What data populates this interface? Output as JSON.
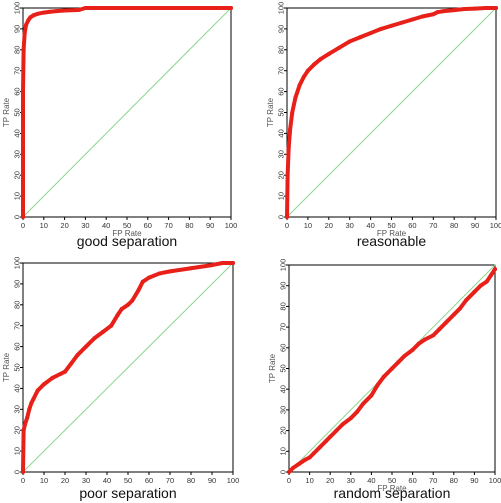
{
  "chart_data": [
    {
      "type": "line",
      "caption": "good separation",
      "xlabel": "FP Rate",
      "ylabel": "TP Rate",
      "xlim": [
        0,
        100
      ],
      "ylim": [
        0,
        100
      ],
      "x_ticks": [
        0,
        10,
        20,
        30,
        40,
        50,
        60,
        70,
        80,
        90,
        100
      ],
      "y_ticks": [
        0,
        10,
        20,
        30,
        40,
        50,
        60,
        70,
        80,
        90,
        100
      ],
      "grid": false,
      "series": [
        {
          "role": "roc",
          "color": "#e8201a",
          "x": [
            0,
            0,
            0.3,
            0.8,
            1.5,
            2.5,
            3.5,
            5,
            7,
            10,
            13,
            16,
            20,
            25,
            27,
            30,
            35,
            40,
            50,
            60,
            70,
            80,
            90,
            100
          ],
          "y": [
            0,
            60,
            80,
            88,
            92,
            94,
            95.5,
            96.5,
            97.2,
            97.8,
            98.2,
            98.5,
            98.8,
            99,
            99.1,
            100,
            100,
            100,
            100,
            100,
            100,
            100,
            100,
            100
          ]
        },
        {
          "role": "diagonal",
          "color": "#8fd48f",
          "x": [
            0,
            100
          ],
          "y": [
            0,
            100
          ]
        }
      ]
    },
    {
      "type": "line",
      "caption": "reasonable",
      "xlabel": "FP Rate",
      "ylabel": "TP Rate",
      "xlim": [
        0,
        100
      ],
      "ylim": [
        0,
        100
      ],
      "x_ticks": [
        0,
        10,
        20,
        30,
        40,
        50,
        60,
        70,
        80,
        90,
        100
      ],
      "y_ticks": [
        0,
        10,
        20,
        30,
        40,
        50,
        60,
        70,
        80,
        90,
        100
      ],
      "grid": false,
      "series": [
        {
          "role": "roc",
          "color": "#e8201a",
          "x": [
            0,
            0.3,
            0.8,
            1.5,
            2.5,
            4,
            6,
            8,
            10,
            13,
            16,
            20,
            25,
            30,
            35,
            40,
            45,
            50,
            55,
            60,
            65,
            70,
            72,
            75,
            80,
            85,
            90,
            95,
            100
          ],
          "y": [
            0,
            20,
            33,
            42,
            50,
            57,
            63,
            67,
            70,
            73,
            75.5,
            78,
            81,
            84,
            86,
            88,
            90,
            91.5,
            93,
            94.5,
            96,
            97,
            98,
            98.5,
            99,
            99.5,
            99.7,
            100,
            100
          ]
        },
        {
          "role": "diagonal",
          "color": "#8fd48f",
          "x": [
            0,
            100
          ],
          "y": [
            0,
            100
          ]
        }
      ]
    },
    {
      "type": "line",
      "caption": "poor separation",
      "xlabel": "",
      "ylabel": "TP Rate",
      "xlim": [
        0,
        100
      ],
      "ylim": [
        0,
        100
      ],
      "x_ticks": [
        0,
        10,
        20,
        30,
        40,
        50,
        60,
        70,
        80,
        90,
        100
      ],
      "y_ticks": [
        0,
        10,
        20,
        30,
        40,
        50,
        60,
        70,
        80,
        90,
        100
      ],
      "grid": false,
      "series": [
        {
          "role": "roc",
          "color": "#e8201a",
          "x": [
            0,
            0.3,
            1,
            2,
            3,
            4,
            5,
            7,
            10,
            14,
            18,
            20,
            23,
            26,
            30,
            34,
            38,
            42,
            45,
            47,
            50,
            52,
            55,
            57,
            60,
            65,
            70,
            80,
            90,
            95,
            100
          ],
          "y": [
            0,
            20,
            23,
            26,
            30,
            33,
            35,
            39,
            42,
            45,
            47,
            48,
            52,
            56,
            60,
            64,
            67,
            70,
            75,
            78,
            80,
            82,
            87,
            91,
            93,
            95,
            96,
            97.5,
            99,
            100,
            100
          ]
        },
        {
          "role": "diagonal",
          "color": "#8fd48f",
          "x": [
            0,
            100
          ],
          "y": [
            0,
            100
          ]
        }
      ]
    },
    {
      "type": "line",
      "caption": "random separation",
      "xlabel": "FP Rate",
      "ylabel": "TP Rate",
      "xlim": [
        0,
        100
      ],
      "ylim": [
        0,
        100
      ],
      "x_ticks": [
        0,
        10,
        20,
        30,
        40,
        50,
        60,
        70,
        80,
        90,
        100
      ],
      "y_ticks": [
        0,
        10,
        20,
        30,
        40,
        50,
        60,
        70,
        80,
        90,
        100
      ],
      "grid": false,
      "series": [
        {
          "role": "roc",
          "color": "#e8201a",
          "x": [
            0,
            2,
            5,
            8,
            10,
            12,
            15,
            18,
            20,
            23,
            26,
            30,
            33,
            36,
            40,
            43,
            46,
            50,
            53,
            56,
            60,
            63,
            66,
            70,
            73,
            76,
            80,
            83,
            86,
            90,
            93,
            96,
            98,
            100
          ],
          "y": [
            0,
            2,
            4,
            6,
            7,
            9,
            12,
            15,
            17,
            20,
            23,
            26,
            29,
            33,
            37,
            42,
            46,
            50,
            53,
            56,
            59,
            62,
            64,
            66,
            69,
            72,
            76,
            79,
            83,
            87,
            90,
            92,
            95,
            98
          ]
        },
        {
          "role": "diagonal",
          "color": "#8fd48f",
          "x": [
            0,
            100
          ],
          "y": [
            0,
            100
          ]
        }
      ]
    }
  ],
  "colors": {
    "roc": "#e8201a",
    "diagonal": "#8fd48f",
    "axis": "#000000",
    "background": "#ffffff"
  }
}
